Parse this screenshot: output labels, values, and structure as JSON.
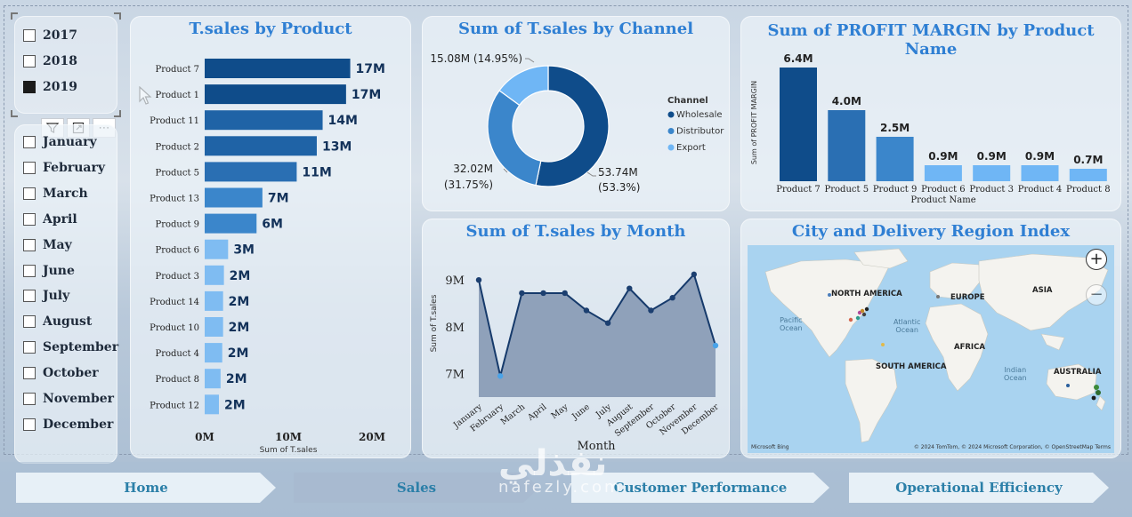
{
  "year_slicer": {
    "items": [
      {
        "label": "2017",
        "checked": false
      },
      {
        "label": "2018",
        "checked": false
      },
      {
        "label": "2019",
        "checked": true
      }
    ]
  },
  "slicer_toolbar": {
    "filter_icon": "filter-icon",
    "focus_icon": "focus-mode-icon",
    "more_label": "⋯"
  },
  "month_slicer": {
    "items": [
      "January",
      "February",
      "March",
      "April",
      "May",
      "June",
      "July",
      "August",
      "September",
      "October",
      "November",
      "December"
    ]
  },
  "charts": {
    "sales_by_product": {
      "title": "T.sales by Product"
    },
    "sales_by_channel": {
      "title": "Sum of T.sales by Channel"
    },
    "profit_margin": {
      "title": "Sum of PROFIT MARGIN by Product Name"
    },
    "sales_by_month": {
      "title": "Sum of T.sales by Month"
    },
    "map": {
      "title": "City and Delivery Region Index"
    }
  },
  "chart_data": [
    {
      "type": "bar",
      "orientation": "horizontal",
      "title": "T.sales by Product",
      "xlabel": "Sum of T.sales",
      "ylabel": "",
      "xlim": [
        0,
        20
      ],
      "x_ticks": [
        "0M",
        "10M",
        "20M"
      ],
      "categories": [
        "Product 7",
        "Product 1",
        "Product 11",
        "Product 2",
        "Product 5",
        "Product 13",
        "Product 9",
        "Product 6",
        "Product 3",
        "Product 14",
        "Product 10",
        "Product 4",
        "Product 8",
        "Product 12"
      ],
      "values": [
        17.4,
        16.9,
        14.1,
        13.4,
        11.0,
        6.9,
        6.2,
        2.8,
        2.3,
        2.2,
        2.2,
        2.1,
        1.9,
        1.7
      ],
      "data_labels": [
        "17M",
        "17M",
        "14M",
        "13M",
        "11M",
        "7M",
        "6M",
        "3M",
        "2M",
        "2M",
        "2M",
        "2M",
        "2M",
        "2M"
      ],
      "colors": [
        "#0f4c8a",
        "#0f4c8a",
        "#1f63a6",
        "#1f63a6",
        "#2a6fb3",
        "#3b86cb",
        "#3b86cb",
        "#7fbcf2",
        "#7fbcf2",
        "#7fbcf2",
        "#7fbcf2",
        "#7fbcf2",
        "#7fbcf2",
        "#7fbcf2"
      ]
    },
    {
      "type": "pie",
      "variant": "donut",
      "title": "Sum of T.sales by Channel",
      "legend_title": "Channel",
      "legend_position": "right",
      "slices": [
        {
          "name": "Wholesale",
          "value": 53.74,
          "label": "53.74M",
          "pct": "(53.3%)",
          "color": "#0f4c8a"
        },
        {
          "name": "Distributor",
          "value": 32.02,
          "label": "32.02M",
          "pct": "(31.75%)",
          "color": "#3b86cb"
        },
        {
          "name": "Export",
          "value": 15.08,
          "label": "15.08M (14.95%)",
          "pct": "",
          "color": "#6fb6f5"
        }
      ]
    },
    {
      "type": "bar",
      "title": "Sum of PROFIT MARGIN by Product Name",
      "xlabel": "Product Name",
      "ylabel": "Sum of PROFIT MARGIN",
      "categories": [
        "Product 7",
        "Product 5",
        "Product 9",
        "Product 6",
        "Product 3",
        "Product 4",
        "Product 8"
      ],
      "values": [
        6.4,
        4.0,
        2.5,
        0.9,
        0.9,
        0.9,
        0.7
      ],
      "data_labels": [
        "6.4M",
        "4.0M",
        "2.5M",
        "0.9M",
        "0.9M",
        "0.9M",
        "0.7M"
      ],
      "colors": [
        "#0f4c8a",
        "#2a6fb3",
        "#3b86cb",
        "#6fb6f5",
        "#6fb6f5",
        "#6fb6f5",
        "#6fb6f5"
      ]
    },
    {
      "type": "area",
      "title": "Sum of T.sales by Month",
      "xlabel": "Month",
      "ylabel": "Sum of T.sales",
      "ylim": [
        6.5,
        9.25
      ],
      "y_ticks": [
        "7M",
        "8M",
        "9M"
      ],
      "y_tick_values": [
        7,
        8,
        9
      ],
      "categories": [
        "January",
        "February",
        "March",
        "April",
        "May",
        "June",
        "July",
        "August",
        "September",
        "October",
        "November",
        "December"
      ],
      "values": [
        9.0,
        6.95,
        8.72,
        8.72,
        8.72,
        8.35,
        8.08,
        8.82,
        8.35,
        8.62,
        9.12,
        7.6
      ]
    }
  ],
  "map": {
    "labels": {
      "north_america": "NORTH AMERICA",
      "europe": "EUROPE",
      "asia": "ASIA",
      "africa": "AFRICA",
      "south_america": "SOUTH AMERICA",
      "australia": "AUSTRALIA",
      "pacific": "Pacific\nOcean",
      "atlantic": "Atlantic\nOcean",
      "indian": "Indian\nOcean"
    },
    "zoom_in": "+",
    "zoom_out": "−",
    "attribution": "© 2024 TomTom, © 2024 Microsoft Corporation, © OpenStreetMap Terms",
    "brand": "Microsoft Bing",
    "ocean_color": "#a9d3f0",
    "land_color": "#f4f3ef"
  },
  "nav": {
    "home": "Home",
    "sales": "Sales",
    "customer": "Customer Performance",
    "operational": "Operational Efficiency"
  },
  "watermark": {
    "arabic": "نفذلي",
    "latin": "nafezly.com"
  }
}
